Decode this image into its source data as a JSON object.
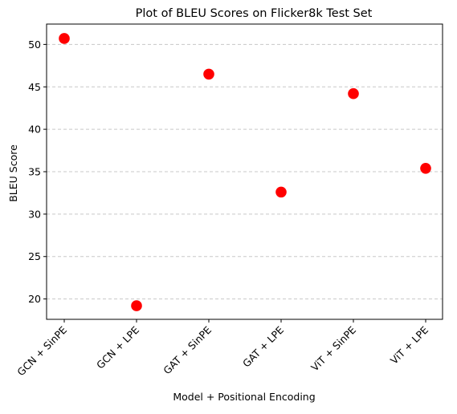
{
  "chart_data": {
    "type": "scatter",
    "title": "Plot of BLEU Scores on Flicker8k Test Set",
    "xlabel": "Model + Positional Encoding",
    "ylabel": "BLEU Score",
    "categories": [
      "GCN + SinPE",
      "GCN + LPE",
      "GAT + SinPE",
      "GAT + LPE",
      "ViT + SinPE",
      "ViT + LPE"
    ],
    "series": [
      {
        "values": [
          50.7,
          19.2,
          46.5,
          32.6,
          44.2,
          35.4
        ]
      }
    ],
    "yticks": [
      20,
      25,
      30,
      35,
      40,
      45,
      50
    ],
    "ylim": [
      17.6,
      52.4
    ],
    "grid": "horizontal dashed",
    "marker_color": "#ff0000",
    "x_tick_rotation": 45
  }
}
